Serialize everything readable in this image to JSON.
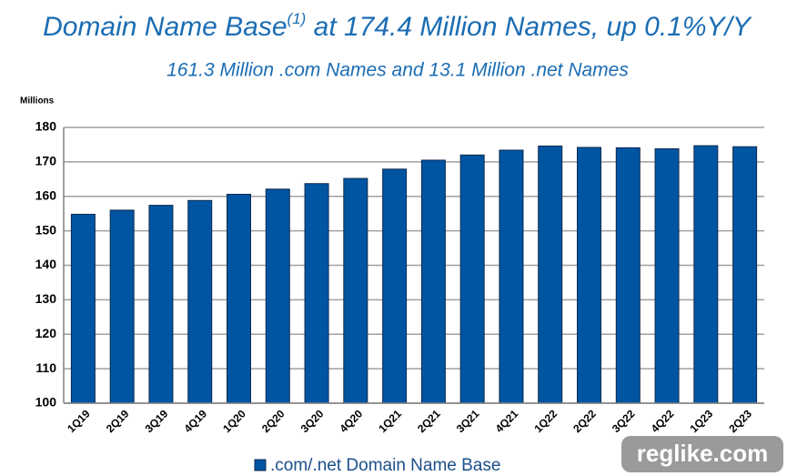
{
  "chart_data": {
    "type": "bar",
    "title": [
      "Domain Name Base",
      "(1)",
      " at 174.4 Million Names, up 0.1%Y/Y"
    ],
    "subtitle": "161.3 Million .com Names and 13.1 Million .net Names",
    "y_label": "Millions",
    "categories": [
      "1Q19",
      "2Q19",
      "3Q19",
      "4Q19",
      "1Q20",
      "2Q20",
      "3Q20",
      "4Q20",
      "1Q21",
      "2Q21",
      "3Q21",
      "4Q21",
      "1Q22",
      "2Q22",
      "3Q22",
      "4Q22",
      "1Q23",
      "2Q23"
    ],
    "series": [
      {
        "name": ".com/.net Domain Name Base",
        "color": "#0055a2",
        "values": [
          154.8,
          156.0,
          157.4,
          158.8,
          160.6,
          162.1,
          163.7,
          165.2,
          167.9,
          170.5,
          172.0,
          173.4,
          174.6,
          174.2,
          174.1,
          173.8,
          174.7,
          174.4
        ]
      }
    ],
    "ylim": [
      100,
      180
    ],
    "yticks": [
      100,
      110,
      120,
      130,
      140,
      150,
      160,
      170,
      180
    ],
    "grid": true,
    "legend": "bottom",
    "watermark": "reglike.com"
  }
}
